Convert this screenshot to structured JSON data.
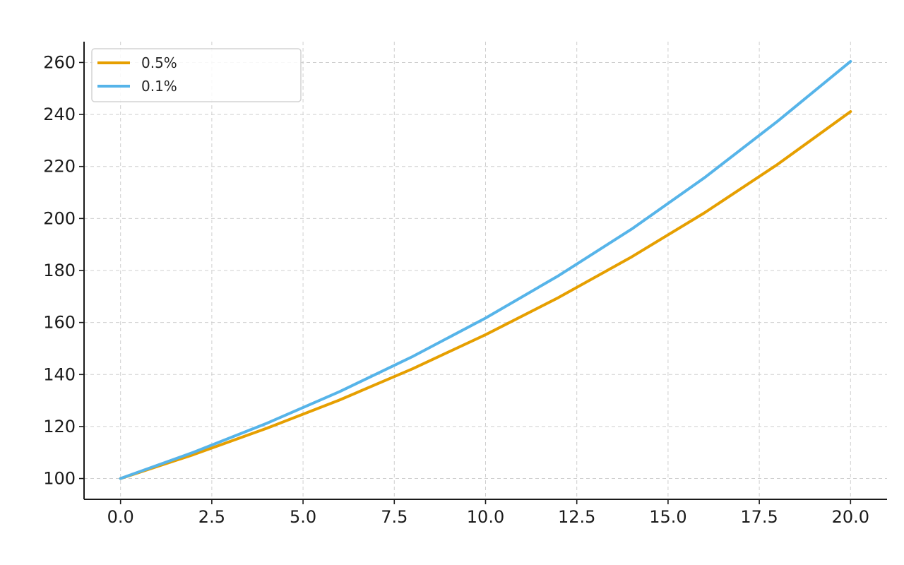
{
  "chart_data": {
    "type": "line",
    "title": "",
    "xlabel": "",
    "ylabel": "",
    "xlim": [
      -1,
      21
    ],
    "ylim": [
      92,
      268
    ],
    "xticks": [
      0.0,
      2.5,
      5.0,
      7.5,
      10.0,
      12.5,
      15.0,
      17.5,
      20.0
    ],
    "xtick_labels": [
      "0.0",
      "2.5",
      "5.0",
      "7.5",
      "10.0",
      "12.5",
      "15.0",
      "17.5",
      "20.0"
    ],
    "yticks": [
      100,
      120,
      140,
      160,
      180,
      200,
      220,
      240,
      260
    ],
    "ytick_labels": [
      "100",
      "120",
      "140",
      "160",
      "180",
      "200",
      "220",
      "240",
      "260"
    ],
    "grid": true,
    "legend_position": "top-left",
    "series": [
      {
        "name": "0.5%",
        "color": "#E69F00",
        "x": [
          0,
          2,
          4,
          6,
          8,
          10,
          12,
          14,
          16,
          18,
          20
        ],
        "values": [
          100,
          109.2,
          119.3,
          130.2,
          142.2,
          155.3,
          169.6,
          185.2,
          202.2,
          220.8,
          241.1
        ]
      },
      {
        "name": "0.1%",
        "color": "#56B4E9",
        "x": [
          0,
          2,
          4,
          6,
          8,
          10,
          12,
          14,
          16,
          18,
          20
        ],
        "values": [
          100,
          110.1,
          121.2,
          133.4,
          146.9,
          161.7,
          178.0,
          195.9,
          215.7,
          237.4,
          260.4
        ]
      }
    ]
  }
}
